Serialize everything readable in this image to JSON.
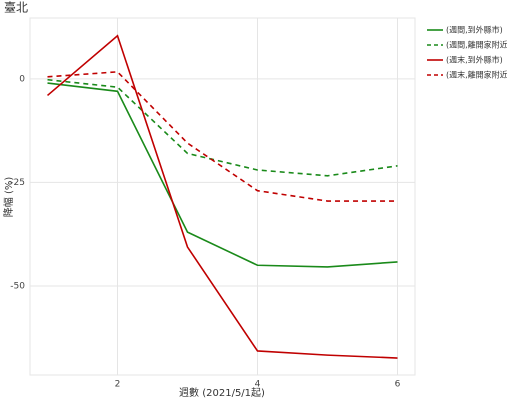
{
  "chart_data": {
    "type": "line",
    "title": "臺北",
    "x_label": "週數 (2021/5/1起)",
    "y_label": "降幅 (%)",
    "x": [
      1,
      2,
      3,
      4,
      5,
      6
    ],
    "xlim": [
      0.75,
      6.25
    ],
    "xticks": [
      2,
      4,
      6
    ],
    "ylim": [
      -71.5,
      14.7
    ],
    "yticks": [
      0,
      -25,
      -50
    ],
    "grid": true,
    "legend": "right-top",
    "series": [
      {
        "name": "(週間,到外縣市)",
        "color": "#1a8a1a",
        "dash": false,
        "values": [
          -1,
          -3,
          -37,
          -45,
          -45.4,
          -44.2
        ]
      },
      {
        "name": "(週間,離開家附近)",
        "color": "#1a8a1a",
        "dash": true,
        "values": [
          -0.2,
          -2,
          -18,
          -22,
          -23.4,
          -21
        ]
      },
      {
        "name": "(週末,到外縣市)",
        "color": "#c00000",
        "dash": false,
        "values": [
          -4,
          10.4,
          -40.6,
          -65.7,
          -66.7,
          -67.4
        ]
      },
      {
        "name": "(週末,離開家附近)",
        "color": "#c00000",
        "dash": true,
        "values": [
          0.5,
          1.7,
          -15.5,
          -27,
          -29.5,
          -29.5
        ]
      }
    ]
  }
}
